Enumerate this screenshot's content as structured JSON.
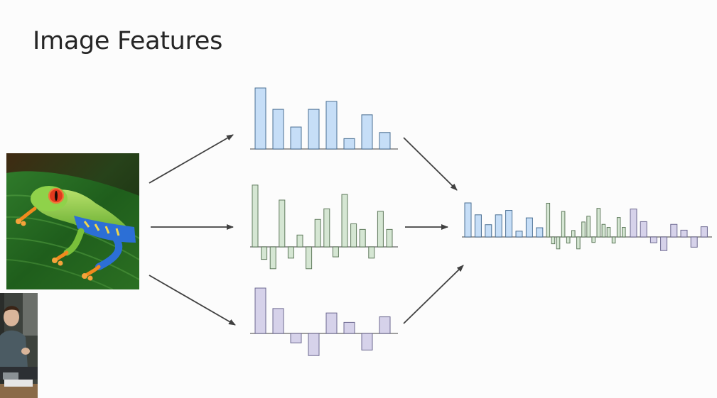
{
  "slide": {
    "title": "Image Features",
    "background_color": "#fcfcfc"
  },
  "feature_vectors": [
    {
      "id": "feature-1",
      "fill": "#c6def7",
      "stroke": "#4a6f93",
      "values": [
        1.0,
        0.65,
        0.36,
        0.65,
        0.78,
        0.17,
        0.56,
        0.27
      ]
    },
    {
      "id": "feature-2",
      "fill": "#d5e6d3",
      "stroke": "#5f7a5c",
      "values": [
        0.99,
        -0.2,
        -0.35,
        0.75,
        -0.18,
        0.19,
        -0.35,
        0.44,
        0.61,
        -0.16,
        0.84,
        0.37,
        0.28,
        -0.18,
        0.57,
        0.28
      ]
    },
    {
      "id": "feature-3",
      "fill": "#d6d2ea",
      "stroke": "#6c6890",
      "values": [
        0.82,
        0.45,
        -0.17,
        -0.4,
        0.37,
        0.2,
        -0.3,
        0.3
      ]
    }
  ],
  "concatenated_vector_colors": {
    "first": "#c6def7",
    "second": "#d5e6d3",
    "third": "#d6d2ea"
  }
}
